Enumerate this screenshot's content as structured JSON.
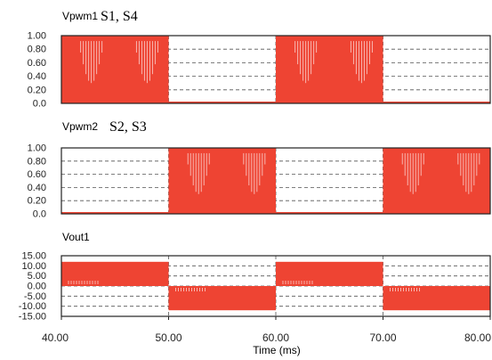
{
  "colors": {
    "signal": "#ee4433",
    "frame": "#222222",
    "grid": "#555555",
    "text": "#222222",
    "background": "#ffffff"
  },
  "chart_data": [
    {
      "type": "line",
      "series_label": "Vpwm1",
      "annotation": "S1, S4",
      "xlim": [
        40,
        80
      ],
      "ylim": [
        0,
        1
      ],
      "y_ticks": [
        "1.00",
        "0.80",
        "0.60",
        "0.40",
        "0.20",
        "0.0"
      ],
      "grid": true,
      "series": [
        {
          "name": "Vpwm1",
          "high": 1.0,
          "low": 0.0,
          "on_intervals": [
            [
              40,
              50
            ],
            [
              60,
              70
            ]
          ]
        }
      ]
    },
    {
      "type": "line",
      "series_label": "Vpwm2",
      "annotation": "S2, S3",
      "xlim": [
        40,
        80
      ],
      "ylim": [
        0,
        1
      ],
      "y_ticks": [
        "1.00",
        "0.80",
        "0.60",
        "0.40",
        "0.20",
        "0.0"
      ],
      "grid": true,
      "series": [
        {
          "name": "Vpwm2",
          "high": 1.0,
          "low": 0.0,
          "on_intervals": [
            [
              50,
              60
            ],
            [
              70,
              80
            ]
          ]
        }
      ]
    },
    {
      "type": "line",
      "series_label": "Vout1",
      "annotation": "",
      "xlim": [
        40,
        80
      ],
      "ylim": [
        -15,
        15
      ],
      "y_ticks": [
        "15.00",
        "10.00",
        "5.00",
        "0.00",
        "-5.00",
        "-10.00",
        "-15.00"
      ],
      "grid": true,
      "series": [
        {
          "name": "Vout1",
          "amplitude": 12,
          "positive_intervals": [
            [
              40,
              50
            ],
            [
              60,
              70
            ]
          ],
          "negative_intervals": [
            [
              50,
              60
            ],
            [
              70,
              80
            ]
          ]
        }
      ]
    }
  ],
  "x_axis": {
    "ticks": [
      "40.00",
      "50.00",
      "60.00",
      "70.00",
      "80.00"
    ],
    "values": [
      40,
      50,
      60,
      70,
      80
    ],
    "label": "Time (ms)"
  }
}
